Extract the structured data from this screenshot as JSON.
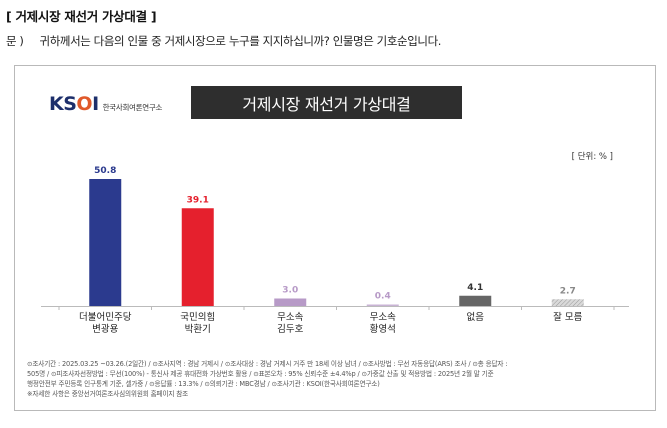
{
  "header": {
    "heading": "[ 거제시장 재선거 가상대결 ]",
    "question_label": "문 )",
    "question_text": "귀하께서는 다음의 인물 중 거제시장으로 누구를 지지하십니까? 인물명은 기호순입니다."
  },
  "card": {
    "logo_text": "KSOI",
    "logo_sub": "한국사회여론연구소",
    "unit_label": "[ 단위: % ]"
  },
  "chart_data": {
    "type": "bar",
    "title": "거제시장 재선거 가상대결",
    "unit": "%",
    "ylim": [
      0,
      60
    ],
    "grid": false,
    "legend": "none",
    "categories": [
      [
        "더불어민주당",
        "변광용"
      ],
      [
        "국민의힘",
        "박환기"
      ],
      [
        "무소속",
        "김두호"
      ],
      [
        "무소속",
        "황영석"
      ],
      [
        "없음"
      ],
      [
        "잘 모름"
      ]
    ],
    "values": [
      50.8,
      39.1,
      3.0,
      0.4,
      4.1,
      2.7
    ],
    "value_labels": [
      "50.8",
      "39.1",
      "3.0",
      "0.4",
      "4.1",
      "2.7"
    ],
    "colors": [
      "#2b3a8e",
      "#e5202d",
      "#b79ac7",
      "#c8b3d4",
      "#666666",
      "#bdbdbd"
    ],
    "label_colors": [
      "#2b3a8e",
      "#e5202d",
      "#b79ac7",
      "#b79ac7",
      "#333333",
      "#888888"
    ],
    "patterns": [
      false,
      false,
      false,
      false,
      false,
      true
    ]
  },
  "footnotes": [
    "⊙조사기간 : 2025.03.25 ~03.26.(2일간) / ⊙조사지역 : 경남 거제시 / ⊙조사대상 : 경남 거제시 거주 만 18세 이상 남녀 / ⊙조사방법 : 무선 자동응답(ARS) 조사 / ⊙총 응답자 :",
    "505명 / ⊙피조사자선정방법 : 무선(100%) - 통신사 제공 휴대전화 가상번호 활용 / ⊙표본오차 : 95% 신뢰수준 ±4.4%p / ⊙가중값 산출 및 적용방법 : 2025년 2월 말 기준",
    "행정안전부 주민등록 인구통계 기준, 셀가중 / ⊙응답률 : 13.3% / ⊙의뢰기관 : MBC경남 / ⊙조사기관 : KSOI(한국사회여론연구소)",
    "※자세한 사항은 중앙선거여론조사심의위원회 홈페이지 참조"
  ]
}
